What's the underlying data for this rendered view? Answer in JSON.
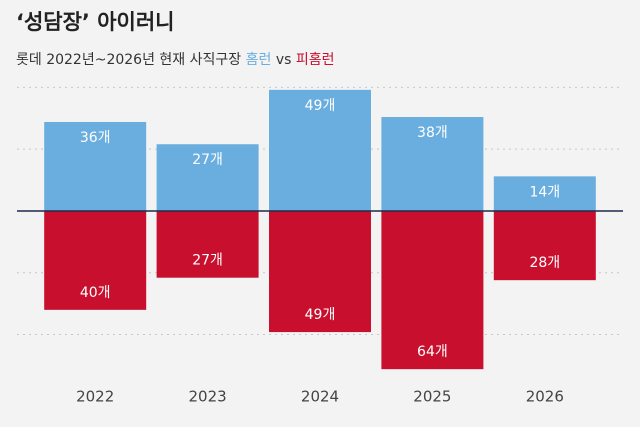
{
  "chart_data": {
    "type": "diverging-bar",
    "title": "‘성담장’ 아이러니",
    "subtitle": "롯데 2022년~2026년 현재 사직구장",
    "subtitle_joiner": "vs",
    "categories": [
      "2022",
      "2023",
      "2024",
      "2025",
      "2026"
    ],
    "series": [
      {
        "name": "홈런",
        "color": "#6aaee0",
        "values": [
          36,
          27,
          49,
          38,
          14
        ],
        "value_labels": [
          "36개",
          "27개",
          "49개",
          "38개",
          "14개"
        ]
      },
      {
        "name": "피홈런",
        "color": "#c8102e",
        "values": [
          -40,
          -27,
          -49,
          -64,
          -28
        ],
        "value_labels": [
          "40개",
          "27개",
          "49개",
          "64개",
          "28개"
        ]
      }
    ],
    "ylim": [
      -70,
      55
    ],
    "yticks": [
      -50,
      -25,
      0,
      25,
      50
    ],
    "grid": true
  }
}
